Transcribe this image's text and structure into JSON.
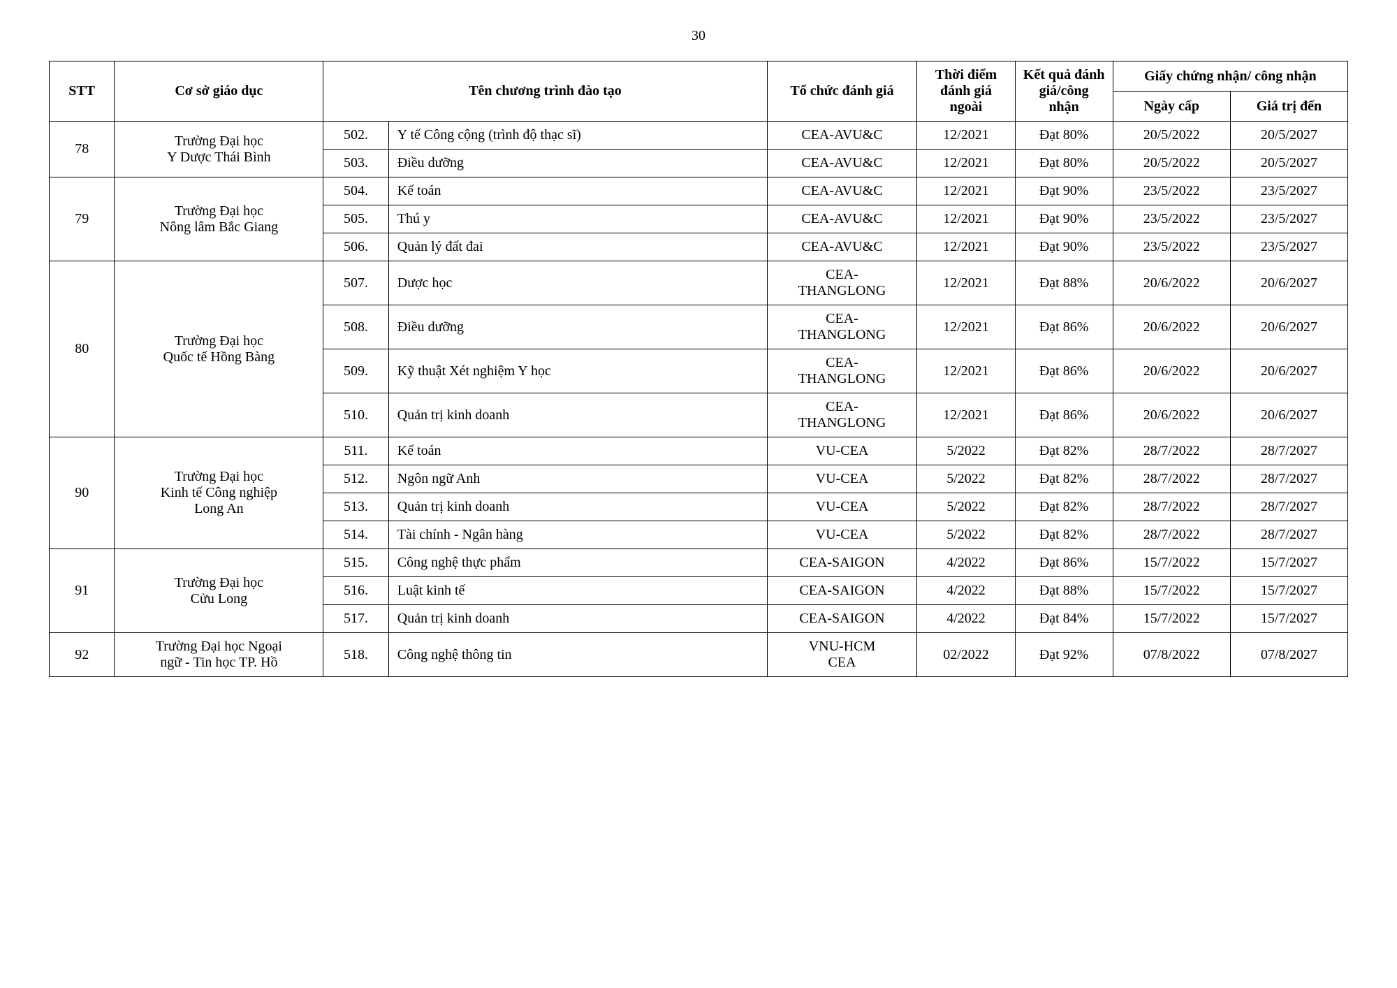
{
  "page_number": "30",
  "headers": {
    "stt": "STT",
    "institution": "Cơ sở giáo dục",
    "program": "Tên chương trình đào tạo",
    "org": "Tổ chức đánh giá",
    "time": "Thời điểm đánh giá ngoài",
    "result": "Kết quả đánh giá/công nhận",
    "certificate": "Giấy chứng nhận/ công nhận",
    "cert_date": "Ngày cấp",
    "cert_valid": "Giá trị đến"
  },
  "groups": [
    {
      "stt": "78",
      "institution": "Trường Đại học\nY Dược Thái Bình",
      "rows": [
        {
          "num": "502.",
          "prog": "Y tế Công cộng (trình độ thạc sĩ)",
          "org": "CEA-AVU&C",
          "time": "12/2021",
          "result": "Đạt 80%",
          "date": "20/5/2022",
          "valid": "20/5/2027"
        },
        {
          "num": "503.",
          "prog": "Điều dưỡng",
          "org": "CEA-AVU&C",
          "time": "12/2021",
          "result": "Đạt 80%",
          "date": "20/5/2022",
          "valid": "20/5/2027"
        }
      ]
    },
    {
      "stt": "79",
      "institution": "Trường Đại học\nNông lâm Bắc Giang",
      "rows": [
        {
          "num": "504.",
          "prog": "Kế toán",
          "org": "CEA-AVU&C",
          "time": "12/2021",
          "result": "Đạt 90%",
          "date": "23/5/2022",
          "valid": "23/5/2027"
        },
        {
          "num": "505.",
          "prog": "Thú y",
          "org": "CEA-AVU&C",
          "time": "12/2021",
          "result": "Đạt 90%",
          "date": "23/5/2022",
          "valid": "23/5/2027"
        },
        {
          "num": "506.",
          "prog": "Quản lý đất đai",
          "org": "CEA-AVU&C",
          "time": "12/2021",
          "result": "Đạt 90%",
          "date": "23/5/2022",
          "valid": "23/5/2027"
        }
      ]
    },
    {
      "stt": "80",
      "institution": "Trường Đại học\nQuốc tế Hồng Bàng",
      "rows": [
        {
          "num": "507.",
          "prog": "Dược học",
          "org": "CEA-THANGLONG",
          "time": "12/2021",
          "result": "Đạt 88%",
          "date": "20/6/2022",
          "valid": "20/6/2027"
        },
        {
          "num": "508.",
          "prog": "Điều dưỡng",
          "org": "CEA-THANGLONG",
          "time": "12/2021",
          "result": "Đạt 86%",
          "date": "20/6/2022",
          "valid": "20/6/2027"
        },
        {
          "num": "509.",
          "prog": "Kỹ thuật Xét nghiệm Y học",
          "org": "CEA-THANGLONG",
          "time": "12/2021",
          "result": "Đạt 86%",
          "date": "20/6/2022",
          "valid": "20/6/2027"
        },
        {
          "num": "510.",
          "prog": "Quản trị kinh doanh",
          "org": "CEA-THANGLONG",
          "time": "12/2021",
          "result": "Đạt 86%",
          "date": "20/6/2022",
          "valid": "20/6/2027"
        }
      ]
    },
    {
      "stt": "90",
      "institution": "Trường Đại học\nKinh tế Công nghiệp\nLong An",
      "rows": [
        {
          "num": "511.",
          "prog": "Kế toán",
          "org": "VU-CEA",
          "time": "5/2022",
          "result": "Đạt 82%",
          "date": "28/7/2022",
          "valid": "28/7/2027"
        },
        {
          "num": "512.",
          "prog": "Ngôn ngữ Anh",
          "org": "VU-CEA",
          "time": "5/2022",
          "result": "Đạt 82%",
          "date": "28/7/2022",
          "valid": "28/7/2027"
        },
        {
          "num": "513.",
          "prog": "Quản trị kinh doanh",
          "org": "VU-CEA",
          "time": "5/2022",
          "result": "Đạt 82%",
          "date": "28/7/2022",
          "valid": "28/7/2027"
        },
        {
          "num": "514.",
          "prog": "Tài chính - Ngân hàng",
          "org": "VU-CEA",
          "time": "5/2022",
          "result": "Đạt 82%",
          "date": "28/7/2022",
          "valid": "28/7/2027"
        }
      ]
    },
    {
      "stt": "91",
      "institution": "Trường Đại học\nCửu Long",
      "rows": [
        {
          "num": "515.",
          "prog": "Công nghệ thực phẩm",
          "org": "CEA-SAIGON",
          "time": "4/2022",
          "result": "Đạt 86%",
          "date": "15/7/2022",
          "valid": "15/7/2027"
        },
        {
          "num": "516.",
          "prog": "Luật kinh tế",
          "org": "CEA-SAIGON",
          "time": "4/2022",
          "result": "Đạt 88%",
          "date": "15/7/2022",
          "valid": "15/7/2027"
        },
        {
          "num": "517.",
          "prog": "Quản trị kinh doanh",
          "org": "CEA-SAIGON",
          "time": "4/2022",
          "result": "Đạt 84%",
          "date": "15/7/2022",
          "valid": "15/7/2027"
        }
      ]
    },
    {
      "stt": "92",
      "institution": "Trường Đại học Ngoại\nngữ - Tin học TP. Hồ",
      "rows": [
        {
          "num": "518.",
          "prog": "Công nghệ thông tin",
          "org": "VNU-HCM CEA",
          "time": "02/2022",
          "result": "Đạt 92%",
          "date": "07/8/2022",
          "valid": "07/8/2027"
        }
      ]
    }
  ]
}
